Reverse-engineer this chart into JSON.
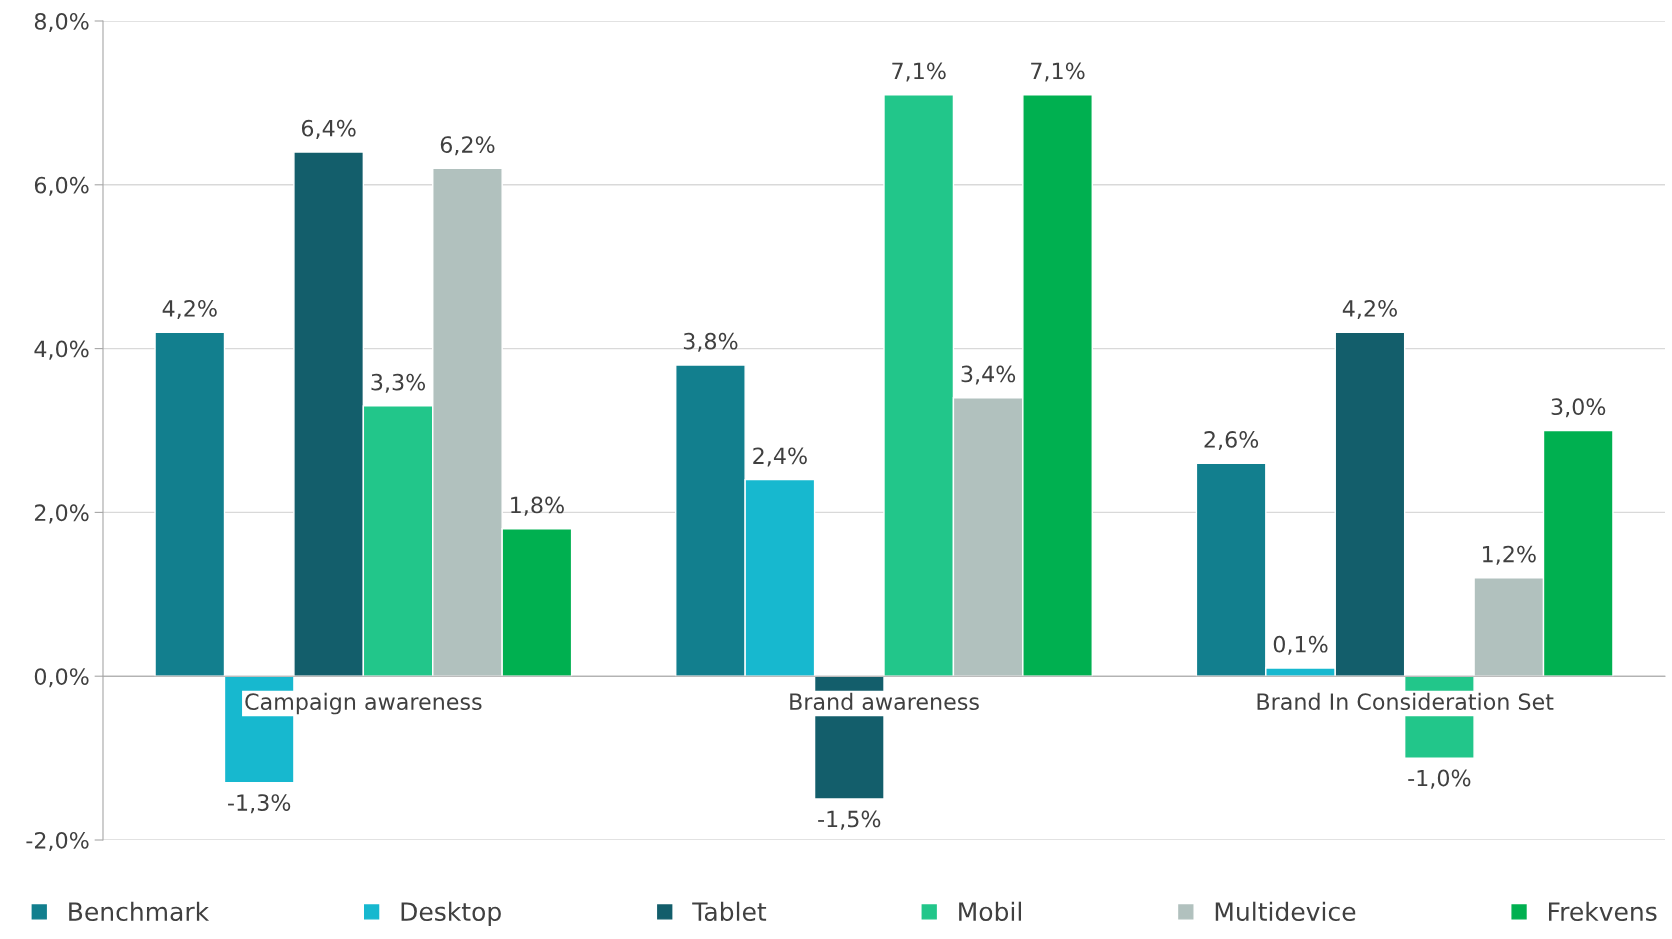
{
  "chart_data": {
    "type": "bar",
    "categories": [
      "Campaign awareness",
      "Brand awareness",
      "Brand In Consideration Set"
    ],
    "series": [
      {
        "name": "Benchmark",
        "color": "#127f8e",
        "values": [
          4.2,
          3.8,
          2.6
        ],
        "value_labels": [
          "4,2%",
          "3,8%",
          "2,6%"
        ]
      },
      {
        "name": "Desktop",
        "color": "#17b8cf",
        "values": [
          -1.3,
          2.4,
          0.1
        ],
        "value_labels": [
          "-1,3%",
          "2,4%",
          "0,1%"
        ]
      },
      {
        "name": "Tablet",
        "color": "#135e6b",
        "values": [
          6.4,
          -1.5,
          4.2
        ],
        "value_labels": [
          "6,4%",
          "-1,5%",
          "4,2%"
        ]
      },
      {
        "name": "Mobil",
        "color": "#22c68a",
        "values": [
          3.3,
          7.1,
          -1.0
        ],
        "value_labels": [
          "3,3%",
          "7,1%",
          "-1,0%"
        ]
      },
      {
        "name": "Multidevice",
        "color": "#b1c1be",
        "values": [
          6.2,
          3.4,
          1.2
        ],
        "value_labels": [
          "6,2%",
          "3,4%",
          "1,2%"
        ]
      },
      {
        "name": "Frekvens",
        "color": "#00b050",
        "values": [
          1.8,
          7.1,
          3.0
        ],
        "value_labels": [
          "1,8%",
          "7,1%",
          "3,0%"
        ]
      }
    ],
    "ylim": [
      -2,
      8
    ],
    "yticks": [
      {
        "value": -2,
        "label": "-2,0%"
      },
      {
        "value": 0,
        "label": "0,0%"
      },
      {
        "value": 2,
        "label": "2,0%"
      },
      {
        "value": 4,
        "label": "4,0%"
      },
      {
        "value": 6,
        "label": "6,0%"
      },
      {
        "value": 8,
        "label": "8,0%"
      }
    ],
    "grid": "y",
    "legend": "bottom"
  }
}
